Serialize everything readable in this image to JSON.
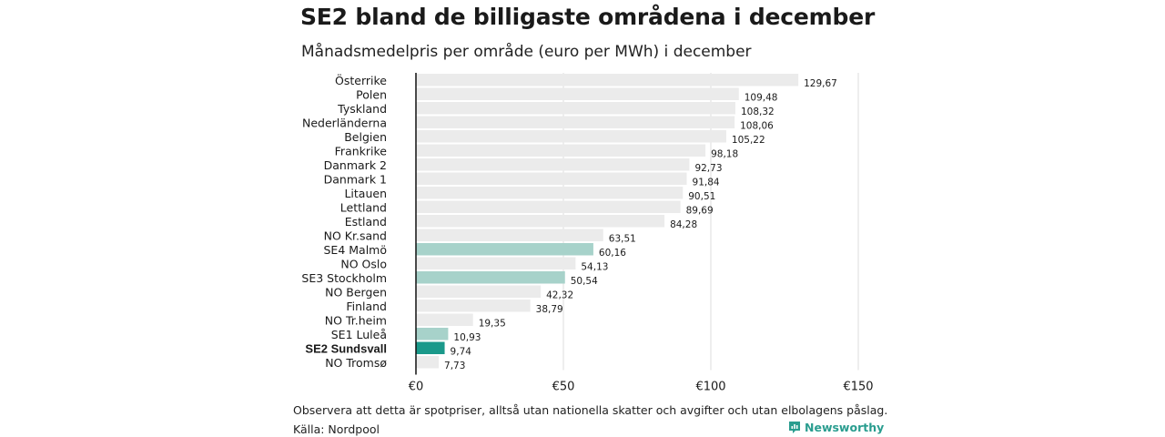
{
  "title": "SE2 bland de billigaste områdena i december",
  "subtitle": "Månadsmedelpris per område (euro per MWh) i december",
  "footnote": "Observera att detta är spotpriser, alltså utan nationella skatter och avgifter och utan elbolagens påslag.",
  "source": "Källa: Nordpool",
  "brand": {
    "name": "Newsworthy",
    "icon": "newsworthy-logo-icon",
    "color": "#2a9d8f"
  },
  "chart_data": {
    "type": "bar",
    "orientation": "horizontal",
    "categories": [
      "Österrike",
      "Polen",
      "Tyskland",
      "Nederländerna",
      "Belgien",
      "Frankrike",
      "Danmark  2",
      "Danmark  1",
      "Litauen",
      "Lettland",
      "Estland",
      "NO Kr.sand",
      "SE4  Malmö",
      "NO Oslo",
      "SE3  Stockholm",
      "NO Bergen",
      "Finland",
      "NO Tr.heim",
      "SE1  Luleå",
      "SE2 Sundsvall",
      "NO Tromsø"
    ],
    "values": [
      129.67,
      109.48,
      108.32,
      108.06,
      105.22,
      98.18,
      92.73,
      91.84,
      90.51,
      89.69,
      84.28,
      63.51,
      60.16,
      54.13,
      50.54,
      42.32,
      38.79,
      19.35,
      10.93,
      9.74,
      7.73
    ],
    "value_labels": [
      "129,67",
      "109,48",
      "108,32",
      "108,06",
      "105,22",
      "98,18",
      "92,73",
      "91,84",
      "90,51",
      "89,69",
      "84,28",
      "63,51",
      "60,16",
      "54,13",
      "50,54",
      "42,32",
      "38,79",
      "19,35",
      "10,93",
      "9,74",
      "7,73"
    ],
    "highlight": [
      "none",
      "none",
      "none",
      "none",
      "none",
      "none",
      "none",
      "none",
      "none",
      "none",
      "none",
      "none",
      "light",
      "none",
      "light",
      "none",
      "none",
      "none",
      "light",
      "strong",
      "none"
    ],
    "bold_category": "SE2 Sundsvall",
    "xlim": [
      0,
      150
    ],
    "xticks": [
      0,
      50,
      100,
      150
    ],
    "xtick_labels": [
      "€0",
      "€50",
      "€100",
      "€150"
    ],
    "grid": true,
    "colors": {
      "none": "#ebebeb",
      "light": "#a7d2ca",
      "strong": "#1a998a",
      "grid": "#dddddd",
      "axis": "#111111"
    }
  }
}
